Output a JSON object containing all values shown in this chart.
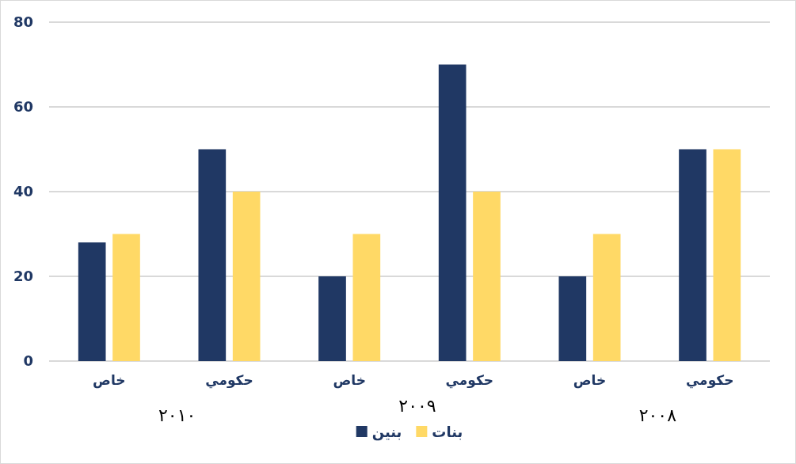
{
  "chart_data": {
    "type": "bar",
    "categories": [
      "خاص",
      "حكومي",
      "خاص",
      "حكومي",
      "خاص",
      "حكومي"
    ],
    "series": [
      {
        "name": "بنين",
        "color": "#203864",
        "values": [
          28,
          50,
          20,
          70,
          20,
          50
        ]
      },
      {
        "name": "بنات",
        "color": "#ffd966",
        "values": [
          30,
          40,
          30,
          40,
          30,
          50
        ]
      }
    ],
    "ylim": [
      0,
      80
    ],
    "yticks": [
      0,
      20,
      40,
      60,
      80
    ],
    "grid": "y",
    "legend": "bottom",
    "annotations": [
      "٢٠١٠",
      "٢٠٠٩",
      "٢٠٠٨"
    ]
  }
}
